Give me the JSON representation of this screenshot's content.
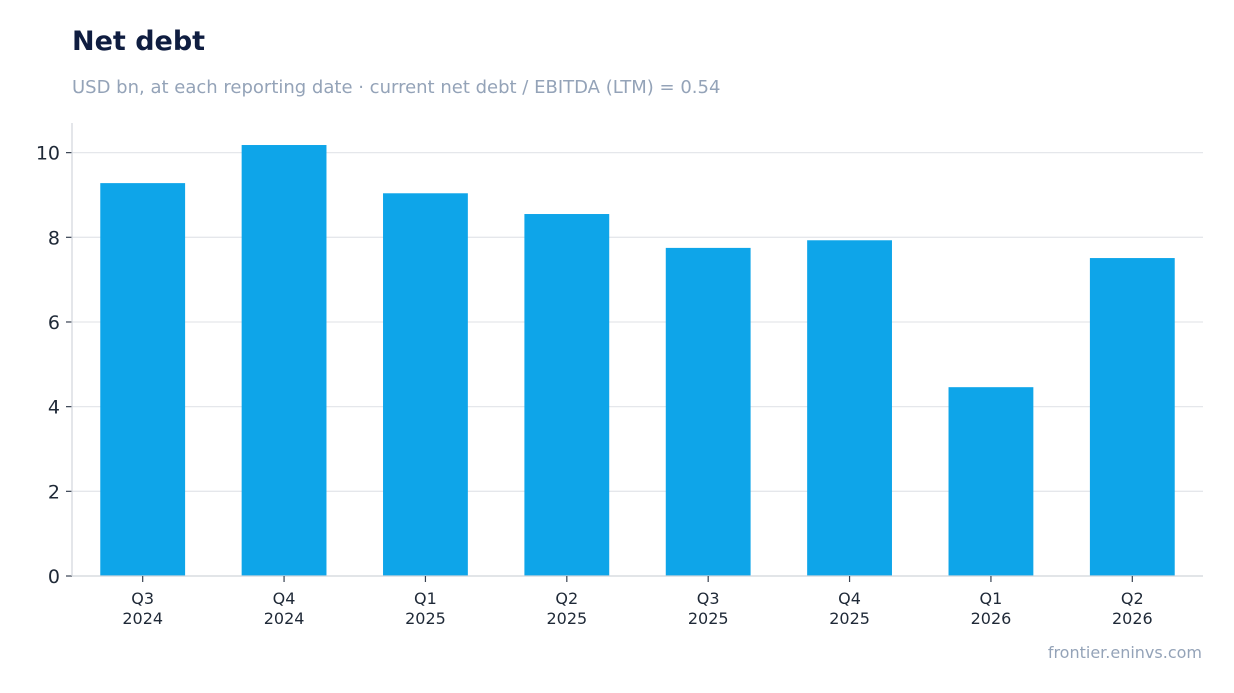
{
  "title": "Net debt",
  "subtitle": "USD bn, at each reporting date · current net debt / EBITDA (LTM) = 0.54",
  "source": "frontier.eninvs.com",
  "colors": {
    "bar": "#0ea5e9",
    "grid": "#e5e7eb",
    "axis": "#d1d5db"
  },
  "chart_data": {
    "type": "bar",
    "categories": [
      [
        "Q3",
        "2024"
      ],
      [
        "Q4",
        "2024"
      ],
      [
        "Q1",
        "2025"
      ],
      [
        "Q2",
        "2025"
      ],
      [
        "Q3",
        "2025"
      ],
      [
        "Q4",
        "2025"
      ],
      [
        "Q1",
        "2026"
      ],
      [
        "Q2",
        "2026"
      ]
    ],
    "values": [
      9.28,
      10.18,
      9.04,
      8.55,
      7.75,
      7.93,
      4.46,
      7.51
    ],
    "yticks": [
      0,
      2,
      4,
      6,
      8,
      10
    ],
    "ylim": [
      0,
      10.7
    ],
    "grid": true,
    "legend": "none"
  }
}
